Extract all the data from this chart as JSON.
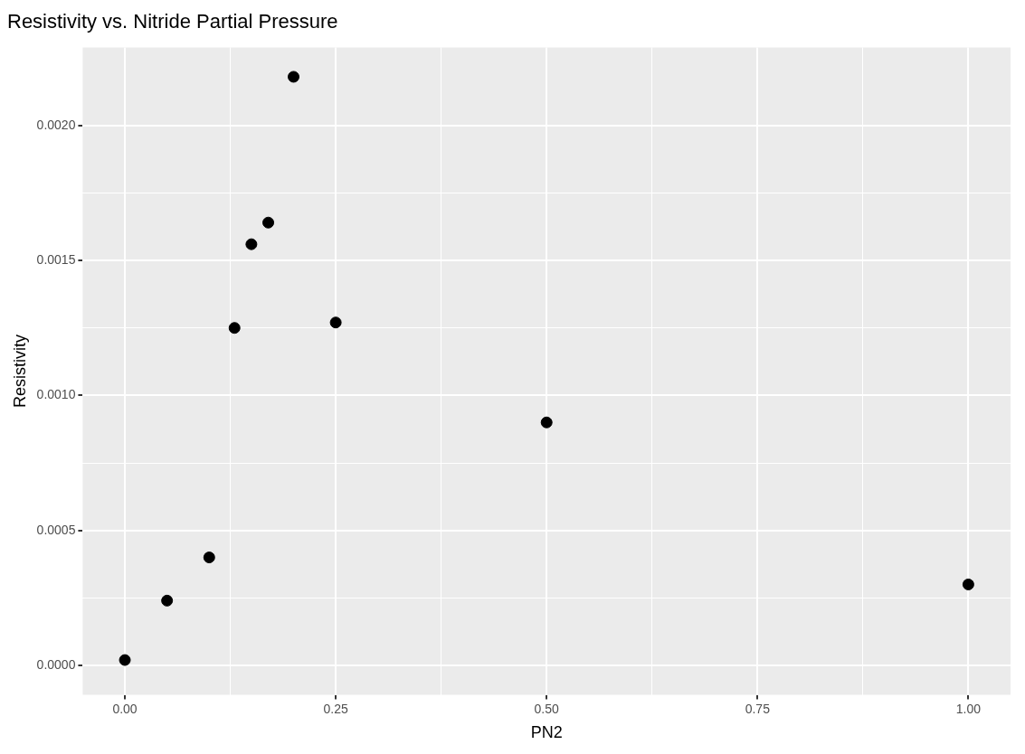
{
  "chart_data": {
    "type": "scatter",
    "title": "Resistivity vs. Nitride Partial Pressure",
    "xlabel": "PN2",
    "ylabel": "Resistivity",
    "x": [
      0,
      0.05,
      0.1,
      0.13,
      0.15,
      0.17,
      0.2,
      0.25,
      0.5,
      1
    ],
    "series": [
      {
        "color": "#000000",
        "values": [
          2e-05,
          0.00024,
          0.0004,
          0.00125,
          0.00156,
          0.00164,
          0.00218,
          0.00127,
          0.0009,
          0.0003
        ]
      }
    ],
    "xlim": [
      -0.05,
      1.05
    ],
    "ylim": [
      -0.000109,
      0.002289
    ],
    "xticks": [
      {
        "value": 0,
        "label": "0.00"
      },
      {
        "value": 0.125,
        "label": null
      },
      {
        "value": 0.25,
        "label": "0.25"
      },
      {
        "value": 0.375,
        "label": null
      },
      {
        "value": 0.5,
        "label": "0.50"
      },
      {
        "value": 0.625,
        "label": null
      },
      {
        "value": 0.75,
        "label": "0.75"
      },
      {
        "value": 0.875,
        "label": null
      },
      {
        "value": 1,
        "label": "1.00"
      }
    ],
    "yticks": [
      {
        "value": 0,
        "label": "0.0000"
      },
      {
        "value": 0.00025,
        "label": null
      },
      {
        "value": 0.0005,
        "label": "0.0005"
      },
      {
        "value": 0.00075,
        "label": null
      },
      {
        "value": 0.001,
        "label": "0.0010"
      },
      {
        "value": 0.00125,
        "label": null
      },
      {
        "value": 0.0015,
        "label": "0.0015"
      },
      {
        "value": 0.00175,
        "label": null
      },
      {
        "value": 0.002,
        "label": "0.0020"
      }
    ],
    "grid": true,
    "legend": false,
    "marker": "circle"
  }
}
